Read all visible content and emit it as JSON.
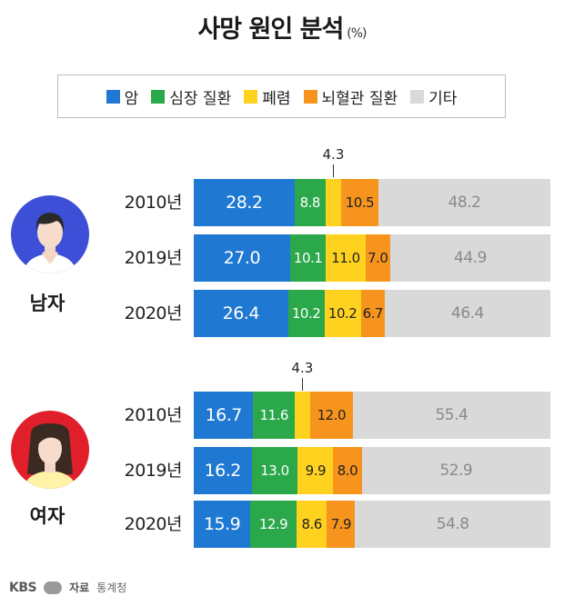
{
  "title": "사망 원인 분석",
  "title_unit": "(%)",
  "legend": [
    {
      "label": "암",
      "color": "#1f78d1"
    },
    {
      "label": "심장 질환",
      "color": "#2aa84a"
    },
    {
      "label": "폐렴",
      "color": "#ffd21f"
    },
    {
      "label": "뇌혈관 질환",
      "color": "#f7941d"
    },
    {
      "label": "기타",
      "color": "#d9d9d9"
    }
  ],
  "chart_data": {
    "type": "bar",
    "stacked": true,
    "orientation": "horizontal",
    "title": "사망 원인 분석",
    "unit": "(%)",
    "series_names": [
      "암",
      "심장 질환",
      "폐렴",
      "뇌혈관 질환",
      "기타"
    ],
    "groups": [
      {
        "label": "남자",
        "rows": [
          {
            "year": "2010년",
            "values": [
              28.2,
              8.8,
              4.3,
              10.5,
              48.2
            ]
          },
          {
            "year": "2019년",
            "values": [
              27.0,
              10.1,
              11.0,
              7.0,
              44.9
            ]
          },
          {
            "year": "2020년",
            "values": [
              26.4,
              10.2,
              10.2,
              6.7,
              46.4
            ]
          }
        ]
      },
      {
        "label": "여자",
        "rows": [
          {
            "year": "2010년",
            "values": [
              16.7,
              11.6,
              4.3,
              12.0,
              55.4
            ]
          },
          {
            "year": "2019년",
            "values": [
              16.2,
              13.0,
              9.9,
              8.0,
              52.9
            ]
          },
          {
            "year": "2020년",
            "values": [
              15.9,
              12.9,
              8.6,
              7.9,
              54.8
            ]
          }
        ]
      }
    ],
    "callouts": [
      "4.3",
      "4.3"
    ]
  },
  "footer": {
    "brand": "KBS",
    "source_label": "자료",
    "source": "통계청"
  }
}
